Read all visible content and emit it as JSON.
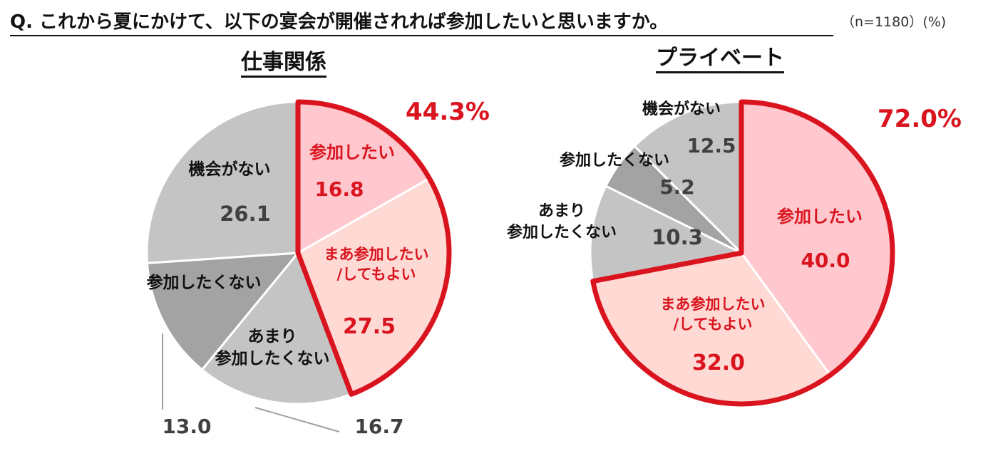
{
  "header": {
    "question": "Q. これから夏にかけて、以下の宴会が開催されれば参加したいと思いますか。",
    "sample": "（n=1180）(%)"
  },
  "chart_data": [
    {
      "type": "pie",
      "title": "仕事関係",
      "highlight_total": "44.3%",
      "slices": [
        {
          "label": "参加したい",
          "value": 16.8,
          "color": "#ffc7ce",
          "text_color": "#d9141e",
          "highlight": true
        },
        {
          "label": "まあ参加したい\n/してもよい",
          "value": 27.5,
          "color": "#ffd9d4",
          "text_color": "#d9141e",
          "highlight": true
        },
        {
          "label": "あまり\n参加したくない",
          "value": 16.7,
          "color": "#c4c4c4",
          "text_color": "#111111",
          "highlight": false
        },
        {
          "label": "参加したくない",
          "value": 13.0,
          "color": "#a3a3a3",
          "text_color": "#111111",
          "highlight": false
        },
        {
          "label": "機会がない",
          "value": 26.1,
          "color": "#c4c4c4",
          "text_color": "#111111",
          "highlight": false
        }
      ]
    },
    {
      "type": "pie",
      "title": "プライベート",
      "highlight_total": "72.0%",
      "slices": [
        {
          "label": "参加したい",
          "value": 40.0,
          "color": "#ffc7ce",
          "text_color": "#d9141e",
          "highlight": true
        },
        {
          "label": "まあ参加したい\n/してもよい",
          "value": 32.0,
          "color": "#ffd9d4",
          "text_color": "#d9141e",
          "highlight": true
        },
        {
          "label": "あまり\n参加したくない",
          "value": 10.3,
          "color": "#c4c4c4",
          "text_color": "#111111",
          "highlight": false
        },
        {
          "label": "参加したくない",
          "value": 5.2,
          "color": "#a3a3a3",
          "text_color": "#111111",
          "highlight": false
        },
        {
          "label": "機会がない",
          "value": 12.5,
          "color": "#c4c4c4",
          "text_color": "#111111",
          "highlight": false
        }
      ]
    }
  ],
  "colors": {
    "highlight_outline": "#d9141e",
    "value_gray": "#404040",
    "leader_line": "#a0a0a0"
  }
}
